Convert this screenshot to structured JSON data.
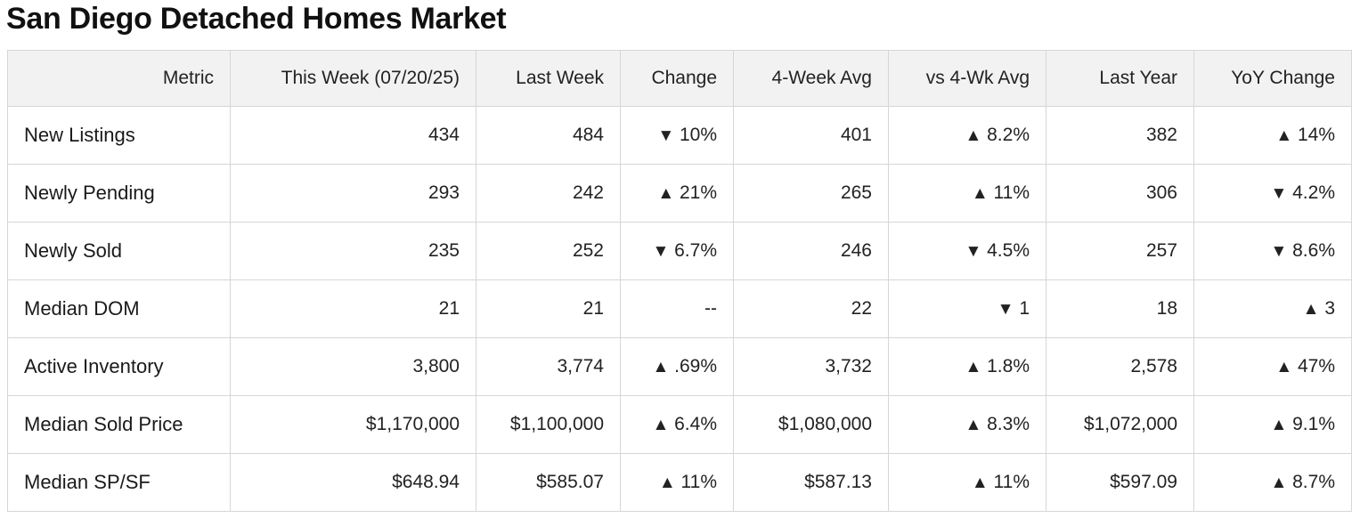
{
  "title": "San Diego Detached Homes Market",
  "colors": {
    "up": "#1e8a1e",
    "down": "#c40000",
    "header_bg": "#f2f2f2",
    "border": "#d6d6d6"
  },
  "table": {
    "headers": [
      "Metric",
      "This Week (07/20/25)",
      "Last Week",
      "Change",
      "4-Week Avg",
      "vs 4-Wk Avg",
      "Last Year",
      "YoY Change"
    ],
    "rows": [
      {
        "metric": "New Listings",
        "this_week": "434",
        "last_week": "484",
        "change": {
          "dir": "down",
          "arrow": "▼",
          "value": "10%"
        },
        "four_week_avg": "401",
        "vs_four_week": {
          "dir": "up",
          "arrow": "▲",
          "value": "8.2%"
        },
        "last_year": "382",
        "yoy": {
          "dir": "up",
          "arrow": "▲",
          "value": "14%"
        }
      },
      {
        "metric": "Newly Pending",
        "this_week": "293",
        "last_week": "242",
        "change": {
          "dir": "up",
          "arrow": "▲",
          "value": "21%"
        },
        "four_week_avg": "265",
        "vs_four_week": {
          "dir": "up",
          "arrow": "▲",
          "value": "11%"
        },
        "last_year": "306",
        "yoy": {
          "dir": "down",
          "arrow": "▼",
          "value": "4.2%"
        }
      },
      {
        "metric": "Newly Sold",
        "this_week": "235",
        "last_week": "252",
        "change": {
          "dir": "down",
          "arrow": "▼",
          "value": "6.7%"
        },
        "four_week_avg": "246",
        "vs_four_week": {
          "dir": "down",
          "arrow": "▼",
          "value": "4.5%"
        },
        "last_year": "257",
        "yoy": {
          "dir": "down",
          "arrow": "▼",
          "value": "8.6%"
        }
      },
      {
        "metric": "Median DOM",
        "this_week": "21",
        "last_week": "21",
        "change": {
          "dir": "neutral",
          "arrow": "",
          "value": "--"
        },
        "four_week_avg": "22",
        "vs_four_week": {
          "dir": "down",
          "arrow": "▼",
          "value": "1"
        },
        "last_year": "18",
        "yoy": {
          "dir": "up",
          "arrow": "▲",
          "value": "3"
        }
      },
      {
        "metric": "Active Inventory",
        "this_week": "3,800",
        "last_week": "3,774",
        "change": {
          "dir": "up",
          "arrow": "▲",
          "value": ".69%"
        },
        "four_week_avg": "3,732",
        "vs_four_week": {
          "dir": "up",
          "arrow": "▲",
          "value": "1.8%"
        },
        "last_year": "2,578",
        "yoy": {
          "dir": "up",
          "arrow": "▲",
          "value": "47%"
        }
      },
      {
        "metric": "Median Sold Price",
        "this_week": "$1,170,000",
        "last_week": "$1,100,000",
        "change": {
          "dir": "up",
          "arrow": "▲",
          "value": "6.4%"
        },
        "four_week_avg": "$1,080,000",
        "vs_four_week": {
          "dir": "up",
          "arrow": "▲",
          "value": "8.3%"
        },
        "last_year": "$1,072,000",
        "yoy": {
          "dir": "up",
          "arrow": "▲",
          "value": "9.1%"
        }
      },
      {
        "metric": "Median SP/SF",
        "this_week": "$648.94",
        "last_week": "$585.07",
        "change": {
          "dir": "up",
          "arrow": "▲",
          "value": "11%"
        },
        "four_week_avg": "$587.13",
        "vs_four_week": {
          "dir": "up",
          "arrow": "▲",
          "value": "11%"
        },
        "last_year": "$597.09",
        "yoy": {
          "dir": "up",
          "arrow": "▲",
          "value": "8.7%"
        }
      }
    ]
  }
}
